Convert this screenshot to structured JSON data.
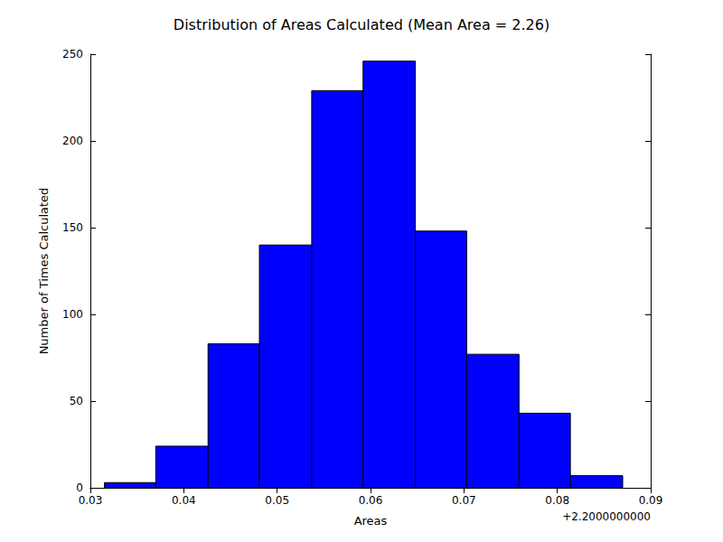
{
  "chart_data": {
    "type": "histogram",
    "title": "Distribution of Areas Calculated (Mean Area = 2.26)",
    "xlabel": "Areas",
    "ylabel": "Number of Times Calculated",
    "annotations": [
      "+2.2000000000"
    ],
    "bins": [
      0.0315,
      0.037,
      0.0426,
      0.0481,
      0.0537,
      0.0592,
      0.0648,
      0.0703,
      0.0759,
      0.0814,
      0.087
    ],
    "values": [
      3,
      24,
      83,
      140,
      229,
      246,
      148,
      77,
      43,
      7
    ],
    "color": "#0000ff",
    "xlim": [
      0.03,
      0.09
    ],
    "xticks": [
      0.03,
      0.04,
      0.05,
      0.06,
      0.07,
      0.08,
      0.09
    ],
    "ylim": [
      0,
      250
    ],
    "yticks": [
      0,
      50,
      100,
      150,
      200,
      250
    ],
    "grid": false
  }
}
